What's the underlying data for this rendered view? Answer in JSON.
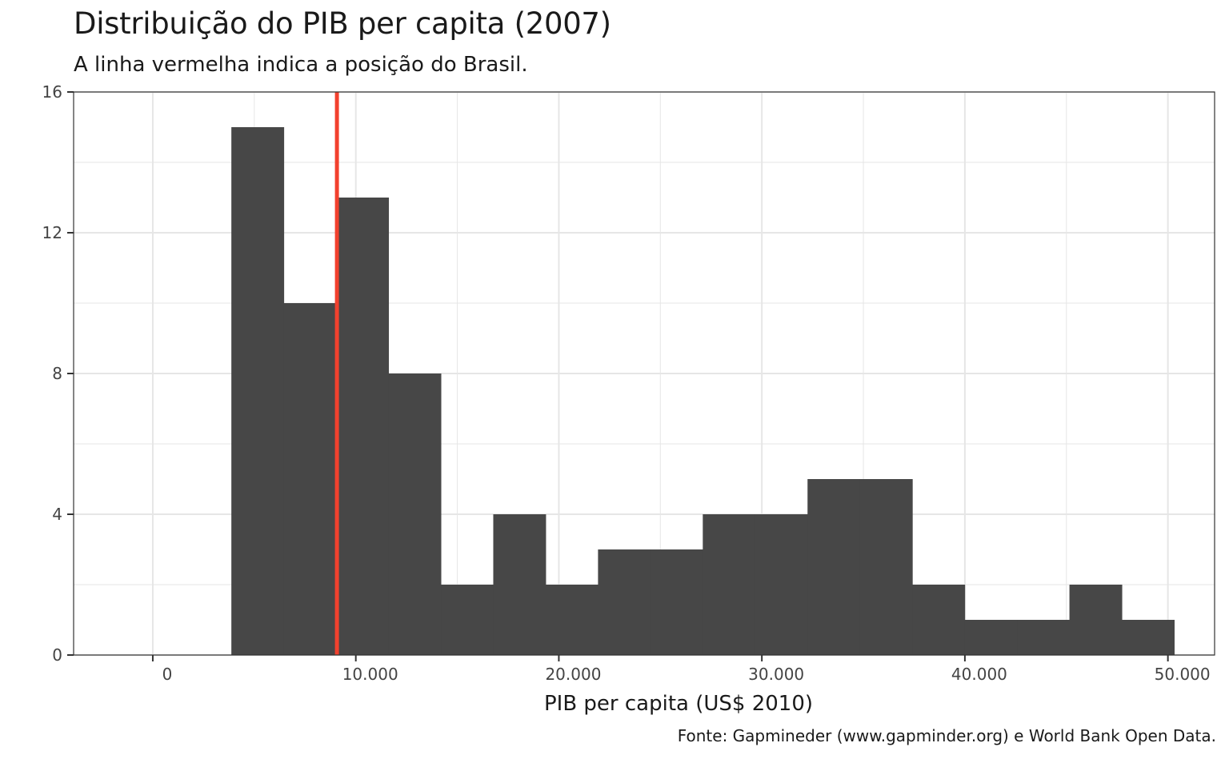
{
  "header": {
    "title": "Distribuição do PIB per capita (2007)",
    "subtitle": "A linha vermelha indica a posição do Brasil."
  },
  "caption": "Fonte: Gapmineder (www.gapminder.org) e World Bank Open Data.",
  "colors": {
    "bar": "#474747",
    "reference_line": "#f2412e",
    "grid": "#e6e6e6",
    "panel_border": "#333333"
  },
  "chart_data": {
    "type": "bar",
    "subtype": "histogram",
    "title": "Distribuição do PIB per capita (2007)",
    "subtitle": "A linha vermelha indica a posição do Brasil.",
    "xlabel": "PIB per capita (US$ 2010)",
    "ylabel": "",
    "xlim": [
      -3900,
      52300
    ],
    "ylim": [
      0,
      16
    ],
    "x_ticks": [
      0,
      10000,
      20000,
      30000,
      40000,
      50000
    ],
    "x_tick_labels": [
      "0",
      "10.000",
      "20.000",
      "30.000",
      "40.000",
      "50.000"
    ],
    "y_ticks": [
      0,
      4,
      8,
      12,
      16
    ],
    "y_tick_labels": [
      "0",
      "4",
      "8",
      "12",
      "16"
    ],
    "bins": [
      {
        "x0": 3870,
        "x1": 6450,
        "count": 15
      },
      {
        "x0": 6450,
        "x1": 9030,
        "count": 10
      },
      {
        "x0": 9030,
        "x1": 11610,
        "count": 13
      },
      {
        "x0": 11610,
        "x1": 14190,
        "count": 8
      },
      {
        "x0": 14190,
        "x1": 16770,
        "count": 2
      },
      {
        "x0": 16770,
        "x1": 19350,
        "count": 4
      },
      {
        "x0": 19350,
        "x1": 21930,
        "count": 2
      },
      {
        "x0": 21930,
        "x1": 24510,
        "count": 3
      },
      {
        "x0": 24510,
        "x1": 27090,
        "count": 3
      },
      {
        "x0": 27090,
        "x1": 29670,
        "count": 4
      },
      {
        "x0": 29670,
        "x1": 32250,
        "count": 4
      },
      {
        "x0": 32250,
        "x1": 34830,
        "count": 5
      },
      {
        "x0": 34830,
        "x1": 37410,
        "count": 5
      },
      {
        "x0": 37410,
        "x1": 39990,
        "count": 2
      },
      {
        "x0": 39990,
        "x1": 42570,
        "count": 1
      },
      {
        "x0": 42570,
        "x1": 45150,
        "count": 1
      },
      {
        "x0": 45150,
        "x1": 47730,
        "count": 2
      },
      {
        "x0": 47730,
        "x1": 50310,
        "count": 1
      }
    ],
    "reference_line": {
      "x": 9070
    },
    "grid": true,
    "legend": "none",
    "caption": "Fonte: Gapmineder (www.gapminder.org) e World Bank Open Data."
  }
}
